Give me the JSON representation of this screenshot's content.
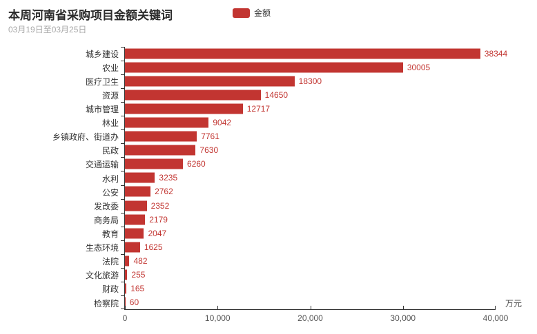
{
  "title": "本周河南省采购项目金额关键词",
  "subtitle": "03月19日至03月25日",
  "legend": {
    "label": "金额",
    "color": "#c23531"
  },
  "colors": {
    "bar": "#c23531",
    "value_label": "#c23531",
    "axis_line": "#333333",
    "axis_tick_label": "#555555",
    "category_label": "#333333",
    "title": "#2b2b2b",
    "subtitle": "#a8a8a8",
    "background": "#ffffff"
  },
  "chart_data": {
    "type": "bar",
    "orientation": "horizontal",
    "title": "本周河南省采购项目金额关键词",
    "subtitle": "03月19日至03月25日",
    "series_name": "金额",
    "xlabel": "",
    "ylabel": "",
    "x_unit": "万元",
    "xlim": [
      0,
      40000
    ],
    "x_tick_labels": [
      "0",
      "10,000",
      "20,000",
      "30,000",
      "40,000"
    ],
    "x_tick_values": [
      0,
      10000,
      20000,
      30000,
      40000
    ],
    "grid": false,
    "legend_position": "top",
    "bar_color": "#c23531",
    "categories": [
      "城乡建设",
      "农业",
      "医疗卫生",
      "资源",
      "城市管理",
      "林业",
      "乡镇政府、街道办",
      "民政",
      "交通运输",
      "水利",
      "公安",
      "发改委",
      "商务局",
      "教育",
      "生态环境",
      "法院",
      "文化旅游",
      "财政",
      "检察院"
    ],
    "values": [
      38344,
      30005,
      18300,
      14650,
      12717,
      9042,
      7761,
      7630,
      6260,
      3235,
      2762,
      2352,
      2179,
      2047,
      1625,
      482,
      255,
      165,
      60
    ]
  }
}
